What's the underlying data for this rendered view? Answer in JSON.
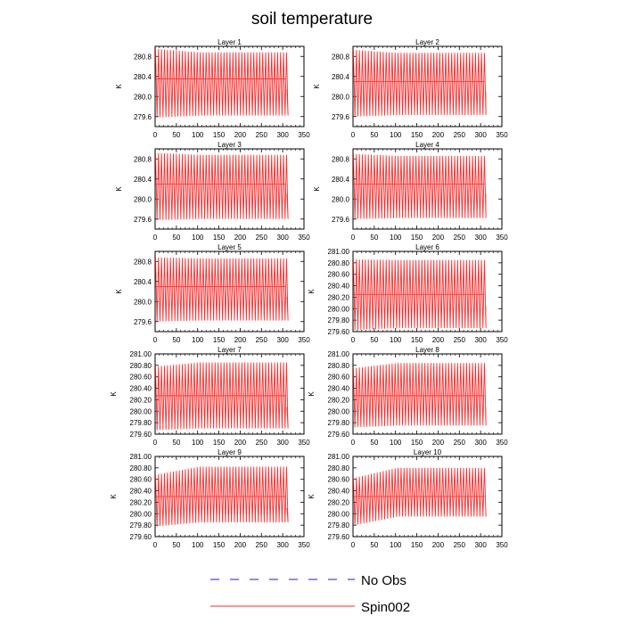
{
  "figure": {
    "title": "soil temperature"
  },
  "legend": {
    "items": [
      {
        "label": "No Obs",
        "color": "#1f1fbf",
        "style": "dashed"
      },
      {
        "label": "Spin002",
        "color": "#ff2a2a",
        "style": "solid"
      }
    ]
  },
  "chart_data": [
    {
      "type": "line",
      "title": "Layer 1",
      "ylabel": "K",
      "xlim": [
        0,
        350
      ],
      "ylim": [
        279.4,
        281.0
      ],
      "xticks": [
        "0",
        "50",
        "100",
        "150",
        "200",
        "250",
        "300",
        "350"
      ],
      "yticks": [
        "279.6",
        "280.0",
        "280.4",
        "280.8"
      ],
      "series": [
        {
          "name": "Spin002",
          "color": "#ff2a2a",
          "period": 7,
          "x_end": 308,
          "max_start": 280.95,
          "max_end": 280.88,
          "min_start": 279.58,
          "min_end": 279.62,
          "mean": 280.35
        }
      ]
    },
    {
      "type": "line",
      "title": "Layer 2",
      "ylabel": "K",
      "xlim": [
        0,
        350
      ],
      "ylim": [
        279.4,
        281.0
      ],
      "xticks": [
        "0",
        "50",
        "100",
        "150",
        "200",
        "250",
        "300",
        "350"
      ],
      "yticks": [
        "279.6",
        "280.0",
        "280.4",
        "280.8"
      ],
      "series": [
        {
          "name": "Spin002",
          "color": "#ff2a2a",
          "period": 7,
          "x_end": 310,
          "max_start": 280.93,
          "max_end": 280.87,
          "min_start": 279.6,
          "min_end": 279.63,
          "mean": 280.3
        }
      ]
    },
    {
      "type": "line",
      "title": "Layer 3",
      "ylabel": "K",
      "xlim": [
        0,
        350
      ],
      "ylim": [
        279.4,
        281.0
      ],
      "xticks": [
        "0",
        "50",
        "100",
        "150",
        "200",
        "250",
        "300",
        "350"
      ],
      "yticks": [
        "279.6",
        "280.0",
        "280.4",
        "280.8"
      ],
      "series": [
        {
          "name": "Spin002",
          "color": "#ff2a2a",
          "period": 7,
          "x_end": 308,
          "max_start": 280.92,
          "max_end": 280.88,
          "min_start": 279.58,
          "min_end": 279.6,
          "mean": 280.3
        }
      ]
    },
    {
      "type": "line",
      "title": "Layer 4",
      "ylabel": "K",
      "xlim": [
        0,
        350
      ],
      "ylim": [
        279.4,
        281.0
      ],
      "xticks": [
        "0",
        "50",
        "100",
        "150",
        "200",
        "250",
        "300",
        "350"
      ],
      "yticks": [
        "279.6",
        "280.0",
        "280.4",
        "280.8"
      ],
      "series": [
        {
          "name": "Spin002",
          "color": "#ff2a2a",
          "period": 7,
          "x_end": 310,
          "max_start": 280.9,
          "max_end": 280.86,
          "min_start": 279.6,
          "min_end": 279.62,
          "mean": 280.3
        }
      ]
    },
    {
      "type": "line",
      "title": "Layer 5",
      "ylabel": "K",
      "xlim": [
        0,
        350
      ],
      "ylim": [
        279.4,
        281.0
      ],
      "xticks": [
        "0",
        "50",
        "100",
        "150",
        "200",
        "250",
        "300",
        "350"
      ],
      "yticks": [
        "279.6",
        "280.0",
        "280.4",
        "280.8"
      ],
      "series": [
        {
          "name": "Spin002",
          "color": "#ff2a2a",
          "period": 7,
          "x_end": 308,
          "max_start": 280.88,
          "max_end": 280.86,
          "min_start": 279.6,
          "min_end": 279.62,
          "mean": 280.3
        }
      ]
    },
    {
      "type": "line",
      "title": "Layer 6",
      "ylabel": "K",
      "xlim": [
        0,
        350
      ],
      "ylim": [
        279.6,
        281.0
      ],
      "xticks": [
        "0",
        "50",
        "100",
        "150",
        "200",
        "250",
        "300",
        "350"
      ],
      "yticks": [
        "279.60",
        "279.80",
        "280.00",
        "280.20",
        "280.40",
        "280.60",
        "280.80",
        "281.00"
      ],
      "series": [
        {
          "name": "Spin002",
          "color": "#ff2a2a",
          "period": 7,
          "x_end": 310,
          "max_start": 280.86,
          "max_end": 280.85,
          "min_start": 279.63,
          "min_end": 279.66,
          "mean": 280.25
        }
      ]
    },
    {
      "type": "line",
      "title": "Layer 7",
      "ylabel": "K",
      "xlim": [
        0,
        350
      ],
      "ylim": [
        279.6,
        281.0
      ],
      "xticks": [
        "0",
        "50",
        "100",
        "150",
        "200",
        "250",
        "300",
        "350"
      ],
      "yticks": [
        "279.60",
        "279.80",
        "280.00",
        "280.20",
        "280.40",
        "280.60",
        "280.80",
        "281.00"
      ],
      "series": [
        {
          "name": "Spin002",
          "color": "#ff2a2a",
          "period": 7,
          "x_end": 308,
          "max_start": 280.78,
          "max_end": 280.85,
          "min_start": 279.67,
          "min_end": 279.7,
          "mean": 280.27
        }
      ]
    },
    {
      "type": "line",
      "title": "Layer 8",
      "ylabel": "K",
      "xlim": [
        0,
        350
      ],
      "ylim": [
        279.6,
        281.0
      ],
      "xticks": [
        "0",
        "50",
        "100",
        "150",
        "200",
        "250",
        "300",
        "350"
      ],
      "yticks": [
        "279.60",
        "279.80",
        "280.00",
        "280.20",
        "280.40",
        "280.60",
        "280.80",
        "281.00"
      ],
      "series": [
        {
          "name": "Spin002",
          "color": "#ff2a2a",
          "period": 7,
          "x_end": 310,
          "max_start": 280.75,
          "max_end": 280.84,
          "min_start": 279.72,
          "min_end": 279.75,
          "mean": 280.27
        }
      ]
    },
    {
      "type": "line",
      "title": "Layer 9",
      "ylabel": "K",
      "xlim": [
        0,
        350
      ],
      "ylim": [
        279.6,
        281.0
      ],
      "xticks": [
        "0",
        "50",
        "100",
        "150",
        "200",
        "250",
        "300",
        "350"
      ],
      "yticks": [
        "279.60",
        "279.80",
        "280.00",
        "280.20",
        "280.40",
        "280.60",
        "280.80",
        "281.00"
      ],
      "series": [
        {
          "name": "Spin002",
          "color": "#ff2a2a",
          "period": 7,
          "x_end": 308,
          "max_start": 280.68,
          "max_end": 280.82,
          "min_start": 279.78,
          "min_end": 279.85,
          "mean": 280.3
        }
      ]
    },
    {
      "type": "line",
      "title": "Layer 10",
      "ylabel": "K",
      "xlim": [
        0,
        350
      ],
      "ylim": [
        279.6,
        281.0
      ],
      "xticks": [
        "0",
        "50",
        "100",
        "150",
        "200",
        "250",
        "300",
        "350"
      ],
      "yticks": [
        "279.60",
        "279.80",
        "280.00",
        "280.20",
        "280.40",
        "280.60",
        "280.80",
        "281.00"
      ],
      "series": [
        {
          "name": "Spin002",
          "color": "#ff2a2a",
          "period": 7,
          "x_end": 310,
          "max_start": 280.62,
          "max_end": 280.8,
          "min_start": 279.8,
          "min_end": 279.95,
          "mean": 280.3
        }
      ]
    }
  ]
}
